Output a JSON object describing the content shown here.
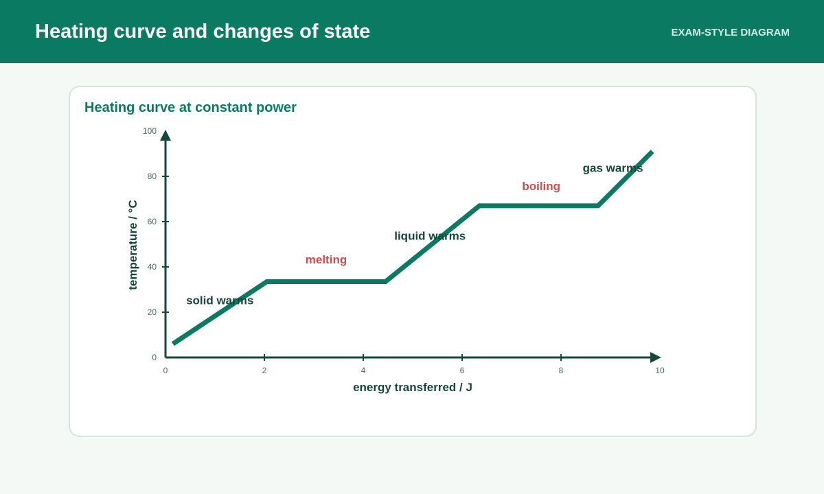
{
  "header": {
    "title": "Heating curve and changes of state",
    "tag": "EXAM-STYLE DIAGRAM"
  },
  "card": {
    "title": "Heating curve at constant power"
  },
  "colors": {
    "header_bg": "#0a7a62",
    "curve": "#0a7a62",
    "axis": "#15473a",
    "label_dark": "#15473a",
    "label_change": "#c9504c"
  },
  "chart_data": {
    "type": "line",
    "xlabel": "energy transferred / J",
    "ylabel": "temperature / °C",
    "xlim": [
      0,
      10
    ],
    "ylim": [
      0,
      100
    ],
    "xticks": [
      "0",
      "2",
      "4",
      "6",
      "8",
      "10"
    ],
    "yticks": [
      "0",
      "20",
      "40",
      "60",
      "80",
      "100"
    ],
    "grid": false,
    "series": [
      {
        "x": [
          0.15,
          2.05,
          4.45,
          6.35,
          8.75,
          9.85
        ],
        "y": [
          6,
          33.5,
          33.5,
          67,
          67,
          91
        ]
      }
    ],
    "annotations": [
      {
        "text": "solid warms",
        "x": 1.1,
        "y": 23.5,
        "kind": "state"
      },
      {
        "text": "melting",
        "x": 3.25,
        "y": 41.5,
        "kind": "change"
      },
      {
        "text": "liquid warms",
        "x": 5.35,
        "y": 52,
        "kind": "state"
      },
      {
        "text": "boiling",
        "x": 7.6,
        "y": 74,
        "kind": "change"
      },
      {
        "text": "gas warms",
        "x": 9.05,
        "y": 82,
        "kind": "state"
      }
    ]
  }
}
